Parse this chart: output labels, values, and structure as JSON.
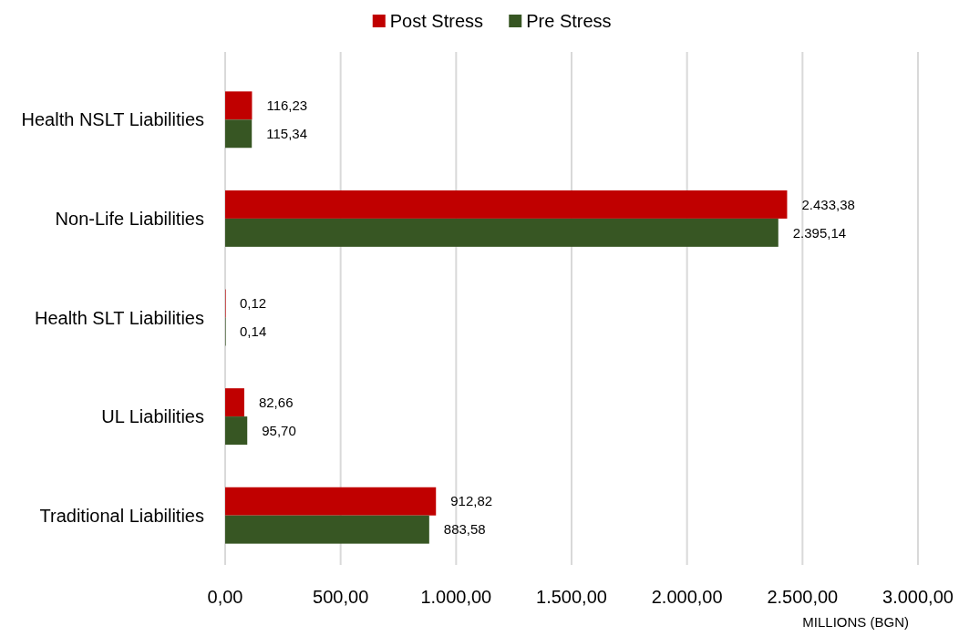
{
  "chart_data": {
    "type": "bar",
    "orientation": "horizontal",
    "categories": [
      "Health NSLT Liabilities",
      "Non-Life Liabilities",
      "Health SLT Liabilities",
      "UL Liabilities",
      "Traditional Liabilities"
    ],
    "series": [
      {
        "name": "Post Stress",
        "color": "#c00000",
        "values": [
          116.23,
          2433.38,
          0.12,
          82.66,
          912.82
        ],
        "value_labels": [
          "116,23",
          "2.433,38",
          "0,12",
          "82,66",
          "912,82"
        ]
      },
      {
        "name": "Pre Stress",
        "color": "#375623",
        "values": [
          115.34,
          2395.14,
          0.14,
          95.7,
          883.58
        ],
        "value_labels": [
          "115,34",
          "2.395,14",
          "0,14",
          "95,70",
          "883,58"
        ]
      }
    ],
    "xlim": [
      0,
      3000
    ],
    "xticks": [
      {
        "value": 0,
        "label": "0,00"
      },
      {
        "value": 500,
        "label": "500,00"
      },
      {
        "value": 1000,
        "label": "1.000,00"
      },
      {
        "value": 1500,
        "label": "1.500,00"
      },
      {
        "value": 2000,
        "label": "2.000,00"
      },
      {
        "value": 2500,
        "label": "2.500,00"
      },
      {
        "value": 3000,
        "label": "3.000,00"
      }
    ],
    "xlabel": "MILLIONS (BGN)",
    "grid": "x",
    "legend": "top"
  }
}
